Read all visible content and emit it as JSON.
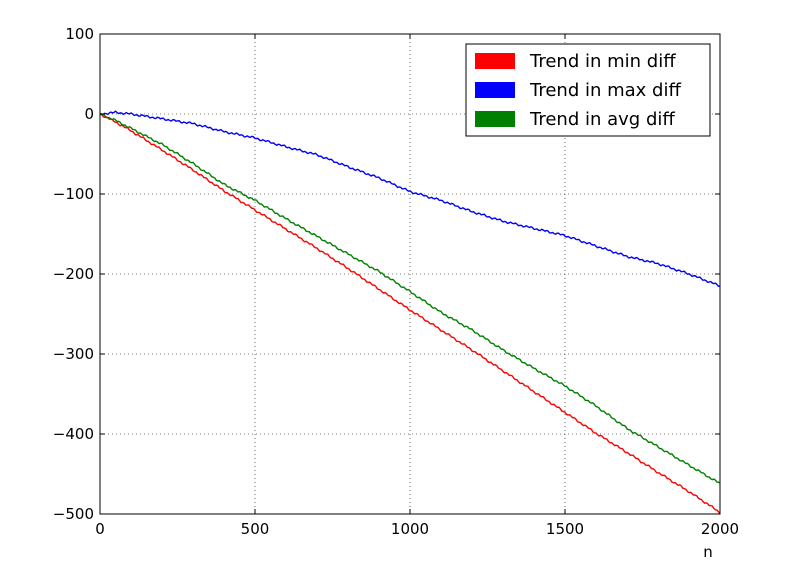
{
  "chart_data": {
    "type": "line",
    "title": "",
    "xlabel": "n",
    "ylabel": "",
    "xlim": [
      0,
      2000
    ],
    "ylim": [
      -500,
      100
    ],
    "xticks": [
      0,
      500,
      1000,
      1500,
      2000
    ],
    "yticks": [
      100,
      0,
      -100,
      -200,
      -300,
      -400,
      -500
    ],
    "xtick_labels": [
      "0",
      "500",
      "1000",
      "1500",
      "2000"
    ],
    "ytick_labels": [
      "100",
      "0",
      "−100",
      "−200",
      "−300",
      "−400",
      "−500"
    ],
    "grid": true,
    "legend_position": "top-right",
    "x": [
      0,
      50,
      100,
      200,
      300,
      400,
      500,
      600,
      700,
      800,
      900,
      1000,
      1100,
      1200,
      1300,
      1400,
      1500,
      1600,
      1700,
      1800,
      1900,
      2000
    ],
    "series": [
      {
        "name": "Trend in min diff",
        "color": "#ff0000",
        "values": [
          0,
          -10,
          -21,
          -45,
          -70,
          -96,
          -120,
          -144,
          -168,
          -193,
          -219,
          -245,
          -270,
          -295,
          -321,
          -347,
          -373,
          -399,
          -423,
          -448,
          -472,
          -498
        ]
      },
      {
        "name": "Trend in max diff",
        "color": "#0000ff",
        "values": [
          0,
          2,
          0,
          -6,
          -12,
          -22,
          -30,
          -41,
          -51,
          -66,
          -80,
          -97,
          -108,
          -122,
          -134,
          -143,
          -152,
          -165,
          -178,
          -187,
          -200,
          -215
        ]
      },
      {
        "name": "Trend in avg diff",
        "color": "#008000",
        "values": [
          0,
          -8,
          -18,
          -38,
          -62,
          -88,
          -108,
          -131,
          -153,
          -175,
          -197,
          -222,
          -248,
          -270,
          -295,
          -318,
          -340,
          -365,
          -393,
          -416,
          -439,
          -462
        ]
      }
    ]
  }
}
